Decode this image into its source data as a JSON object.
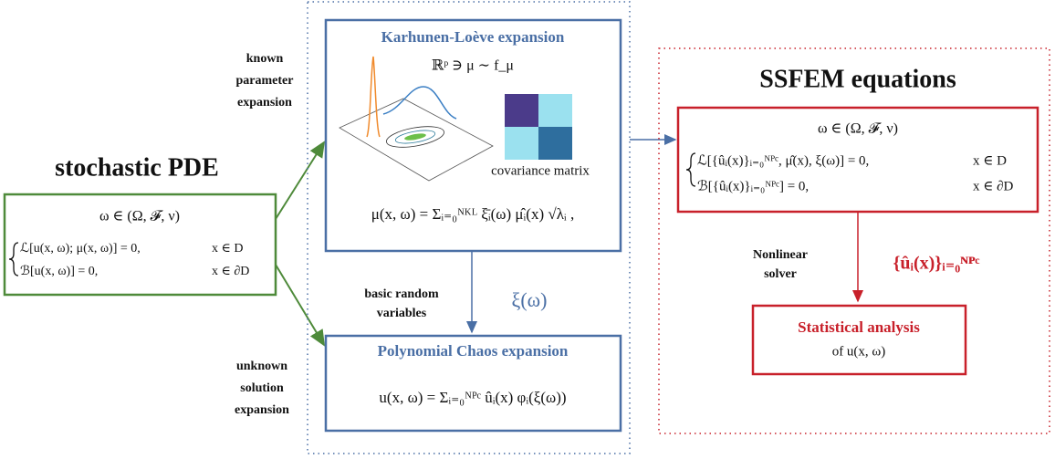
{
  "left": {
    "title": "stochastic PDE",
    "space": "ω ∈ (Ω, 𝓕, ν)",
    "equations": [
      {
        "eq": "ℒ[u(x, ω); μ(x, ω)] = 0,",
        "domain": "x ∈ D"
      },
      {
        "eq": "ℬ[u(x, ω)] = 0,",
        "domain": "x ∈ ∂D"
      }
    ]
  },
  "labels": {
    "known": [
      "known",
      "parameter",
      "expansion"
    ],
    "unknown": [
      "unknown",
      "solution",
      "expansion"
    ],
    "basic": [
      "basic random",
      "variables"
    ],
    "xi": "ξ(ω)",
    "nonlinear": [
      "Nonlinear",
      "solver"
    ],
    "coeffs": "{ûᵢ(x)}ᵢ₌₀ᴺᴾᶜ"
  },
  "kl": {
    "title": "Karhunen-Loève expansion",
    "distribution": "ℝᵖ ∋ μ ∼ f_μ",
    "matrix_label": "covariance matrix",
    "formula": "μ(x, ω) = Σᵢ₌₀ᴺᴷᴸ ξ̄ᵢ(ω) μ̂ᵢ(x) √λᵢ ,"
  },
  "pc": {
    "title": "Polynomial Chaos expansion",
    "formula": "u(x, ω) = Σᵢ₌₀ᴺᴾᶜ ûᵢ(x) φᵢ(ξ(ω))"
  },
  "ssfem": {
    "title": "SSFEM equations",
    "space": "ω ∈ (Ω, 𝓕, ν)",
    "equations": [
      {
        "eq": "ℒ[{ûᵢ(x)}ᵢ₌₀ᴺᴾᶜ, μ̂(x), ξ(ω)] = 0,",
        "domain": "x ∈ D"
      },
      {
        "eq": "ℬ[{ûᵢ(x)}ᵢ₌₀ᴺᴾᶜ] = 0,",
        "domain": "x ∈ ∂D"
      }
    ]
  },
  "analysis": {
    "title": "Statistical analysis",
    "subtitle": "of u(x, ω)"
  }
}
